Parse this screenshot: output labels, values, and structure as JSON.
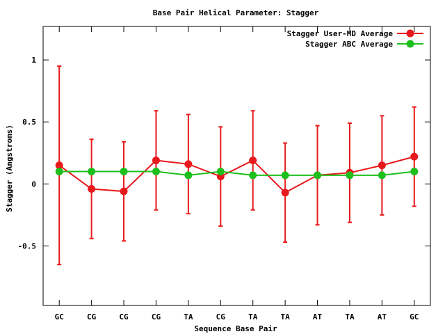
{
  "chart_data": {
    "type": "line",
    "title": "Base Pair Helical Parameter: Stagger",
    "xlabel": "Sequence Base Pair",
    "ylabel": "Stagger (Angstroms)",
    "categories": [
      "GC",
      "CG",
      "CG",
      "CG",
      "TA",
      "CG",
      "TA",
      "TA",
      "AT",
      "TA",
      "AT",
      "GC"
    ],
    "ylim": [
      -0.98,
      1.27
    ],
    "yticks": [
      {
        "value": -0.5,
        "label": "-0.5"
      },
      {
        "value": 0,
        "label": "0"
      },
      {
        "value": 0.5,
        "label": "0.5"
      },
      {
        "value": 1,
        "label": "1"
      }
    ],
    "grid": false,
    "legend_position": "top-right",
    "series": [
      {
        "name": "Stagger User-MD Average",
        "color": "#e8191c",
        "values": [
          0.15,
          -0.04,
          -0.06,
          0.19,
          0.16,
          0.06,
          0.19,
          -0.07,
          0.07,
          0.09,
          0.15,
          0.22
        ],
        "error_low": [
          -0.65,
          -0.44,
          -0.46,
          -0.21,
          -0.24,
          -0.34,
          -0.21,
          -0.47,
          -0.33,
          -0.31,
          -0.25,
          -0.18
        ],
        "error_high": [
          0.95,
          0.36,
          0.34,
          0.59,
          0.56,
          0.46,
          0.59,
          0.33,
          0.47,
          0.49,
          0.55,
          0.62
        ]
      },
      {
        "name": "Stagger ABC Average",
        "color": "#1cbf1c",
        "values": [
          0.1,
          0.1,
          0.1,
          0.1,
          0.07,
          0.1,
          0.07,
          0.07,
          0.07,
          0.07,
          0.07,
          0.1
        ]
      }
    ]
  }
}
